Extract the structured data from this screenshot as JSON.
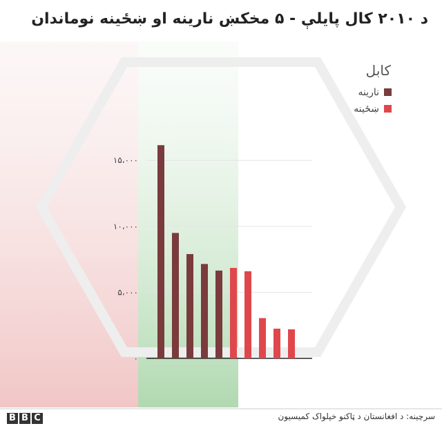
{
  "chart_data": {
    "type": "bar",
    "title": "د ۲۰۱۰ کال پایلې - ۵ مخکښ نارینه او ښځینه نوماندان",
    "subtitle": "کابل",
    "source": "سرچینه: د افغانستان د ټاکنو خپلواک کمیسیون",
    "categories": [
      null,
      null,
      null,
      null,
      null,
      null,
      null,
      null,
      null,
      null
    ],
    "series": [
      {
        "name": "نارینه",
        "color": "#7a3b3d",
        "values": [
          16150,
          9500,
          7900,
          7150,
          6650,
          null,
          null,
          null,
          null,
          null
        ]
      },
      {
        "name": "ښځینه",
        "color": "#e0474c",
        "values": [
          null,
          null,
          null,
          null,
          null,
          6850,
          6600,
          3050,
          2250,
          2200
        ]
      }
    ],
    "ylim": [
      0,
      17000
    ],
    "yticks": [
      {
        "value": 0,
        "label": "۰"
      },
      {
        "value": 5000,
        "label": "۵،۰۰۰"
      },
      {
        "value": 10000,
        "label": "۱۰،۰۰۰"
      },
      {
        "value": 15000,
        "label": "۱۵،۰۰۰"
      }
    ],
    "grid": true
  }
}
